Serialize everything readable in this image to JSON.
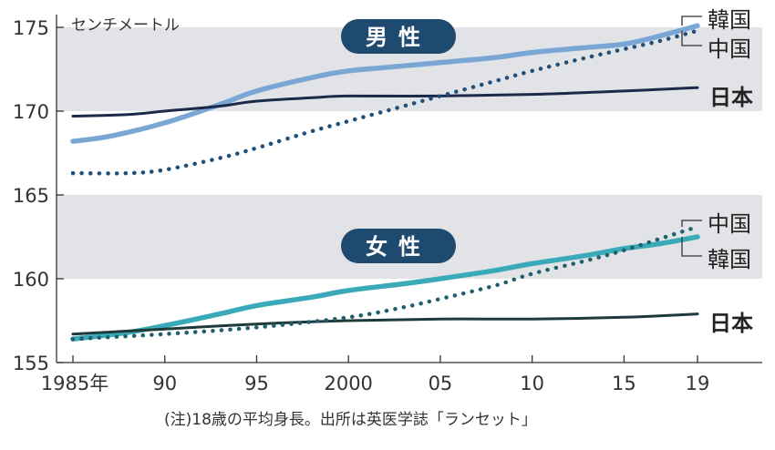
{
  "chart_data": {
    "type": "line",
    "unit_label": "センチメートル",
    "note": "(注)18歳の平均身長。出所は英医学誌「ランセット」",
    "x_ticks": [
      {
        "x": 1985,
        "label": "1985年"
      },
      {
        "x": 1990,
        "label": "90"
      },
      {
        "x": 1995,
        "label": "95"
      },
      {
        "x": 2000,
        "label": "2000"
      },
      {
        "x": 2005,
        "label": "05"
      },
      {
        "x": 2010,
        "label": "10"
      },
      {
        "x": 2015,
        "label": "15"
      },
      {
        "x": 2019,
        "label": "19"
      }
    ],
    "y_ticks": [
      155,
      160,
      165,
      170,
      175
    ],
    "xlim": [
      1985,
      2019
    ],
    "ylim": [
      155,
      175
    ],
    "shaded_bands": [
      [
        160,
        165
      ],
      [
        170,
        175
      ]
    ],
    "colors": {
      "japan": "#1c2a4a",
      "korea_male": "#7aa6d6",
      "china_male": "#1f4f7a",
      "korea_female": "#3aaab8",
      "china_female": "#1f5f70",
      "japan_female": "#1e3a3a",
      "badge": "#1d4a6e",
      "band": "#e2e3e6"
    },
    "groups": [
      {
        "name": "男性",
        "series": [
          {
            "name": "韓国",
            "style": "solid",
            "color_key": "korea_male",
            "x": [
              1985,
              1987,
              1990,
              1993,
              1995,
              1998,
              2000,
              2003,
              2005,
              2008,
              2010,
              2013,
              2015,
              2017,
              2019
            ],
            "y": [
              168.2,
              168.5,
              169.3,
              170.4,
              171.2,
              172.0,
              172.4,
              172.7,
              172.9,
              173.2,
              173.5,
              173.8,
              174.0,
              174.5,
              175.1
            ]
          },
          {
            "name": "中国",
            "style": "dotted",
            "color_key": "china_male",
            "x": [
              1985,
              1988,
              1990,
              1993,
              1995,
              1998,
              2000,
              2003,
              2005,
              2008,
              2010,
              2013,
              2015,
              2017,
              2019
            ],
            "y": [
              166.3,
              166.3,
              166.5,
              167.2,
              167.8,
              168.8,
              169.4,
              170.3,
              170.9,
              171.8,
              172.4,
              173.2,
              173.7,
              174.2,
              174.8
            ]
          },
          {
            "name": "日本",
            "style": "solid",
            "color_key": "japan",
            "x": [
              1985,
              1988,
              1990,
              1993,
              1995,
              1998,
              2000,
              2005,
              2010,
              2015,
              2019
            ],
            "y": [
              169.7,
              169.8,
              170.0,
              170.3,
              170.6,
              170.8,
              170.9,
              170.9,
              171.0,
              171.2,
              171.4
            ]
          }
        ]
      },
      {
        "name": "女性",
        "series": [
          {
            "name": "中国",
            "style": "dotted",
            "color_key": "china_female",
            "x": [
              1985,
              1990,
              1995,
              2000,
              2003,
              2005,
              2008,
              2010,
              2013,
              2015,
              2017,
              2019
            ],
            "y": [
              156.4,
              156.7,
              157.1,
              157.7,
              158.3,
              158.8,
              159.6,
              160.3,
              161.1,
              161.7,
              162.4,
              163.1
            ]
          },
          {
            "name": "韓国",
            "style": "solid",
            "color_key": "korea_female",
            "x": [
              1985,
              1988,
              1990,
              1993,
              1995,
              1998,
              2000,
              2003,
              2005,
              2008,
              2010,
              2013,
              2015,
              2017,
              2019
            ],
            "y": [
              156.4,
              156.8,
              157.2,
              157.9,
              158.4,
              158.9,
              159.3,
              159.7,
              160.0,
              160.5,
              160.9,
              161.4,
              161.8,
              162.1,
              162.5
            ]
          },
          {
            "name": "日本",
            "style": "solid",
            "color_key": "japan_female",
            "x": [
              1985,
              1990,
              1995,
              2000,
              2005,
              2010,
              2015,
              2019
            ],
            "y": [
              156.7,
              157.0,
              157.3,
              157.5,
              157.6,
              157.6,
              157.7,
              157.9
            ]
          }
        ]
      }
    ],
    "end_labels": [
      {
        "text": "韓国",
        "group": 0,
        "series": 0,
        "bold": false,
        "bracket": true
      },
      {
        "text": "中国",
        "group": 0,
        "series": 1,
        "bold": false,
        "bracket": true
      },
      {
        "text": "日本",
        "group": 0,
        "series": 2,
        "bold": true,
        "bracket": false
      },
      {
        "text": "中国",
        "group": 1,
        "series": 0,
        "bold": false,
        "bracket": true
      },
      {
        "text": "韓国",
        "group": 1,
        "series": 1,
        "bold": false,
        "bracket": true
      },
      {
        "text": "日本",
        "group": 1,
        "series": 2,
        "bold": true,
        "bracket": false
      }
    ]
  }
}
